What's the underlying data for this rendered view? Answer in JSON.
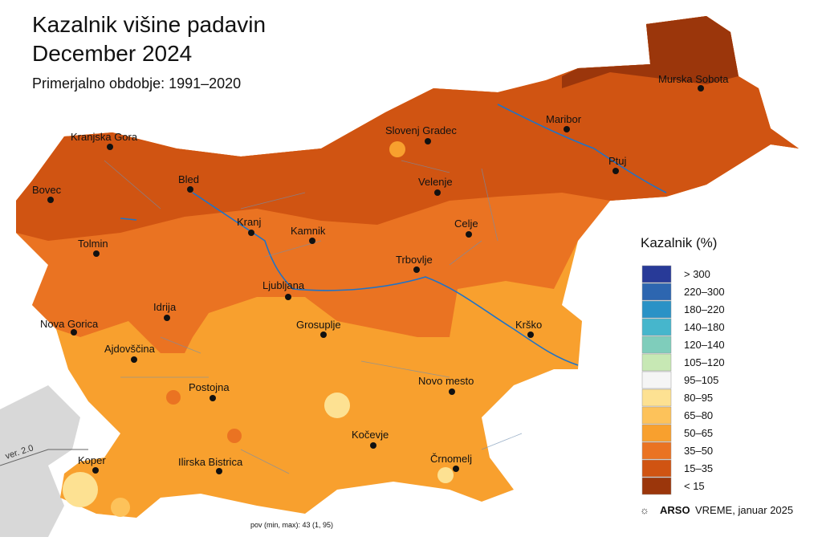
{
  "title_lines": [
    "Kazalnik višine padavin",
    "December 2024"
  ],
  "subtitle": "Primerjalno obdobje: 1991–2020",
  "cities": [
    "Murska Sobota",
    "Kranjska Gora",
    "Slovenj Gradec",
    "Maribor",
    "Ptuj",
    "Bovec",
    "Bled",
    "Velenje",
    "Kranj",
    "Kamnik",
    "Celje",
    "Tolmin",
    "Trbovlje",
    "Ljubljana",
    "Idrija",
    "Nova Gorica",
    "Grosuplje",
    "Krško",
    "Ajdovščina",
    "Novo mesto",
    "Postojna",
    "Kočevje",
    "Koper",
    "Ilirska Bistrica",
    "Črnomelj"
  ],
  "legend": {
    "title": "Kazalnik (%)",
    "items": [
      {
        "label": "> 300",
        "color": "#283a98"
      },
      {
        "label": "220–300",
        "color": "#2d66b0"
      },
      {
        "label": "180–220",
        "color": "#2a92c6"
      },
      {
        "label": "140–180",
        "color": "#46b6cc"
      },
      {
        "label": "120–140",
        "color": "#7fcdbb"
      },
      {
        "label": "105–120",
        "color": "#c7e8b4"
      },
      {
        "label": "95–105",
        "color": "#f5f5f5"
      },
      {
        "label": "80–95",
        "color": "#fde192"
      },
      {
        "label": "65–80",
        "color": "#fdc25a"
      },
      {
        "label": "50–65",
        "color": "#f8a02e"
      },
      {
        "label": "35–50",
        "color": "#ea7322"
      },
      {
        "label": "15–35",
        "color": "#d05412"
      },
      {
        "label": "< 15",
        "color": "#9b360b"
      }
    ]
  },
  "footer": {
    "stats": "pov (min, max): 43 (1, 95)",
    "version": "ver. 2.0",
    "brand": "ARSO",
    "brand_suffix": "VREME, januar 2025"
  }
}
